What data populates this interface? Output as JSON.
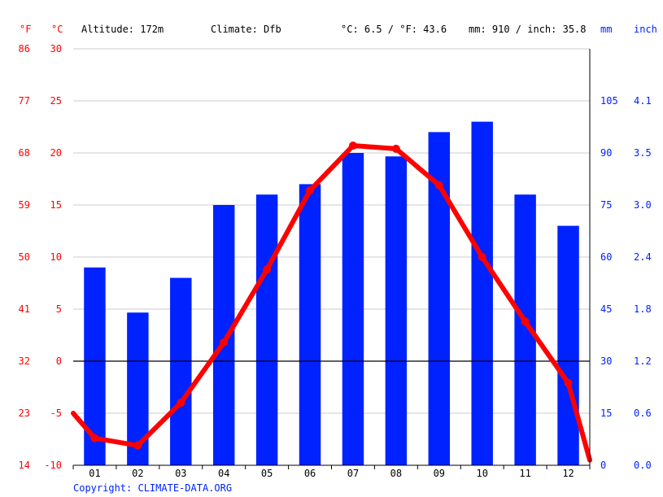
{
  "header": {
    "unit_f": "°F",
    "unit_c": "°C",
    "altitude": "Altitude: 172m",
    "climate": "Climate: Dfb",
    "temp_avg": "°C: 6.5 / °F: 43.6",
    "precip_total": "mm: 910 / inch: 35.8",
    "unit_mm": "mm",
    "unit_inch": "inch"
  },
  "copyright": "Copyright: CLIMATE-DATA.ORG",
  "colors": {
    "temperature": "#ff0000",
    "precipitation": "#0022ff",
    "grid": "#cccccc",
    "zero_line": "#000000"
  },
  "chart_data": {
    "type": "bar",
    "categories": [
      "01",
      "02",
      "03",
      "04",
      "05",
      "06",
      "07",
      "08",
      "09",
      "10",
      "11",
      "12"
    ],
    "series": [
      {
        "type": "bar",
        "axis": "right",
        "unit": "mm",
        "values": [
          57,
          44,
          54,
          75,
          78,
          81,
          90,
          89,
          96,
          99,
          78,
          69
        ]
      },
      {
        "type": "line",
        "axis": "left",
        "unit": "°C",
        "values": [
          -7.4,
          -8.1,
          -4,
          1.8,
          8.8,
          16.4,
          20.7,
          20.4,
          16.9,
          10,
          3.8,
          -2.1
        ]
      }
    ],
    "line_edges": {
      "start": -5,
      "end": -9.5
    },
    "y_left": {
      "range": [
        -10,
        30
      ],
      "ticks_c": [
        "30",
        "25",
        "20",
        "15",
        "10",
        "5",
        "0",
        "-5",
        "-10"
      ],
      "ticks_f": [
        "86",
        "77",
        "68",
        "59",
        "50",
        "41",
        "32",
        "23",
        "14"
      ]
    },
    "y_right": {
      "range": [
        0,
        120
      ],
      "ticks_mm": [
        "105",
        "90",
        "75",
        "60",
        "45",
        "30",
        "15",
        "0"
      ],
      "ticks_inch": [
        "4.1",
        "3.5",
        "3.0",
        "2.4",
        "1.8",
        "1.2",
        "0.6",
        "0.0"
      ]
    },
    "grid": true,
    "legend": "none"
  }
}
